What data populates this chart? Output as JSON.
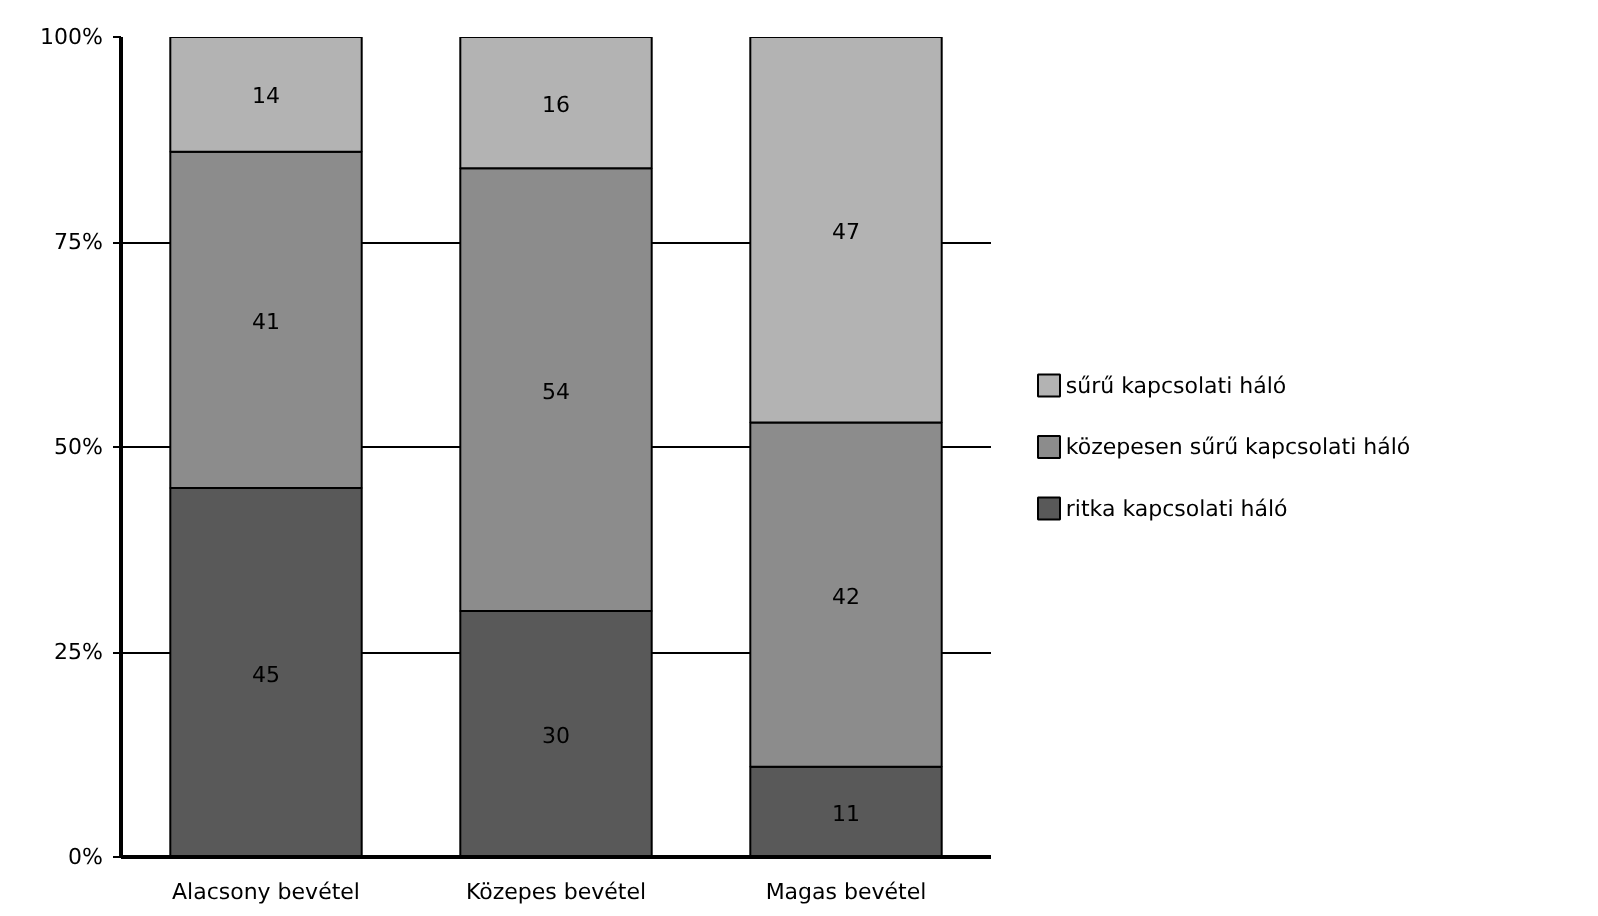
{
  "chart_data": {
    "type": "bar",
    "stacked": true,
    "categories": [
      "Alacsony bevétel",
      "Közepes bevétel",
      "Magas bevétel"
    ],
    "series": [
      {
        "name": "ritka kapcsolati háló",
        "color": "#595959",
        "values": [
          45,
          30,
          11
        ]
      },
      {
        "name": "közepesen sűrű kapcsolati háló",
        "color": "#8c8c8c",
        "values": [
          41,
          54,
          42
        ]
      },
      {
        "name": "sűrű kapcsolati háló",
        "color": "#b3b3b3",
        "values": [
          14,
          16,
          47
        ]
      }
    ],
    "ylim": [
      0,
      100
    ],
    "yticks": [
      {
        "value": 0,
        "label": "0%"
      },
      {
        "value": 25,
        "label": "25%"
      },
      {
        "value": 50,
        "label": "50%"
      },
      {
        "value": 75,
        "label": "75%"
      },
      {
        "value": 100,
        "label": "100%"
      }
    ],
    "grid": "y",
    "legend": "right",
    "data_labels": true
  }
}
